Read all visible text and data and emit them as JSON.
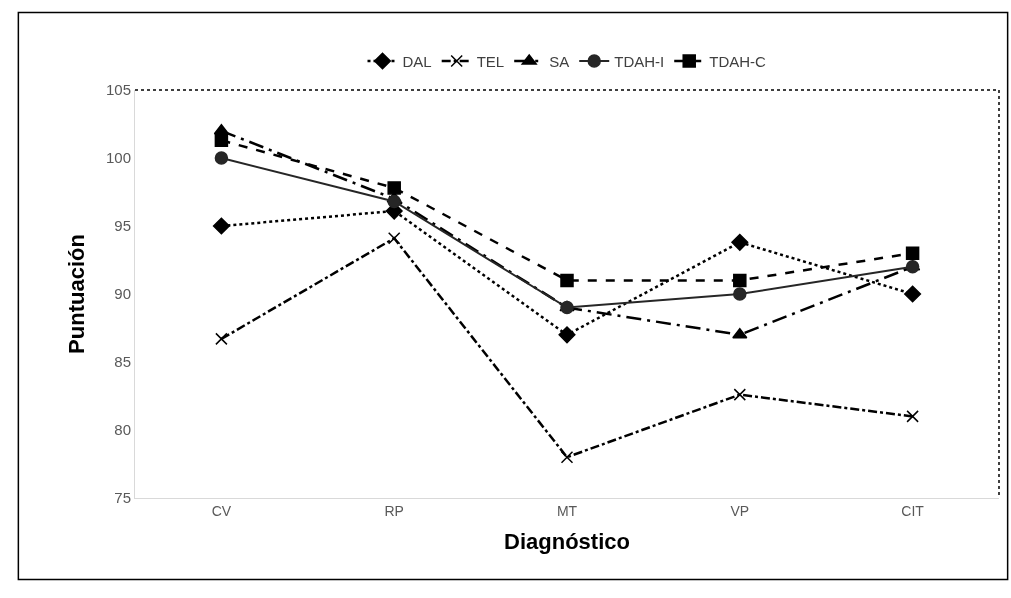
{
  "chart_data": {
    "type": "line",
    "xlabel": "Diagnóstico",
    "ylabel": "Puntuación",
    "categories": [
      "CV",
      "RP",
      "MT",
      "VP",
      "CIT"
    ],
    "ylim": [
      75,
      105
    ],
    "yticks": [
      75,
      80,
      85,
      90,
      95,
      100,
      105
    ],
    "legend": "top",
    "series": [
      {
        "name": "DAL",
        "color": "#000000",
        "marker": "diamond",
        "line_style": "dotted",
        "values": [
          95,
          96.1,
          87,
          93.8,
          90
        ]
      },
      {
        "name": "TEL",
        "color": "#000000",
        "marker": "cross",
        "line_style": "dashdot",
        "values": [
          86.7,
          94.1,
          78,
          82.6,
          81
        ]
      },
      {
        "name": "SA",
        "color": "#000000",
        "marker": "triangle",
        "line_style": "longdashdot",
        "values": [
          102,
          97,
          89,
          87,
          92
        ]
      },
      {
        "name": "TDAH-I",
        "color": "#262626",
        "marker": "circle",
        "line_style": "solid",
        "values": [
          100,
          96.8,
          89,
          90,
          92
        ]
      },
      {
        "name": "TDAH-C",
        "color": "#000000",
        "marker": "square",
        "line_style": "dashed",
        "values": [
          101.3,
          97.8,
          91,
          91,
          93
        ]
      }
    ]
  }
}
